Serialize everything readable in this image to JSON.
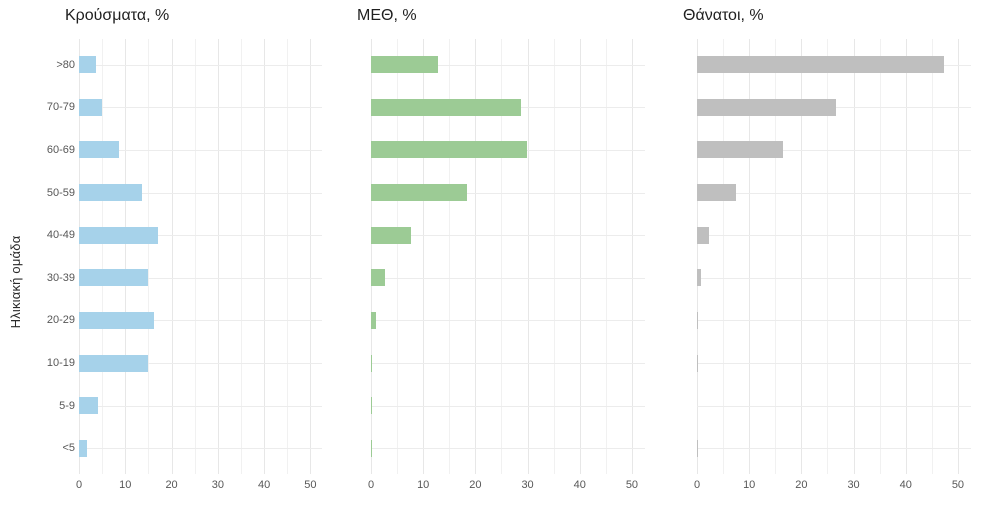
{
  "chart_data": {
    "type": "bar",
    "orientation": "horizontal",
    "ylabel": "Ηλικιακή ομάδα",
    "categories_top_to_bottom": [
      ">80",
      "70-79",
      "60-69",
      "50-59",
      "40-49",
      "30-39",
      "20-29",
      "10-19",
      "5-9",
      "<5"
    ],
    "xticks": [
      0,
      10,
      20,
      30,
      40,
      50
    ],
    "xlim": [
      0,
      52.5
    ],
    "minor_grid_step": 5,
    "grid": true,
    "legend": "none",
    "panels": [
      {
        "title": "Κρούσματα, %",
        "color": "#a6d2ea",
        "values": [
          3.6,
          5.0,
          8.6,
          13.6,
          17.0,
          14.9,
          16.3,
          15.0,
          4.0,
          1.8
        ]
      },
      {
        "title": "ΜΕΘ, %",
        "color": "#9ccb95",
        "values": [
          12.8,
          28.7,
          29.9,
          18.4,
          7.7,
          2.6,
          0.9,
          0.2,
          0.1,
          0.1
        ]
      },
      {
        "title": "Θάνατοι, %",
        "color": "#bfbfbf",
        "values": [
          47.3,
          26.6,
          16.5,
          7.4,
          2.3,
          0.8,
          0.15,
          0.15,
          0,
          0.15
        ]
      }
    ]
  }
}
